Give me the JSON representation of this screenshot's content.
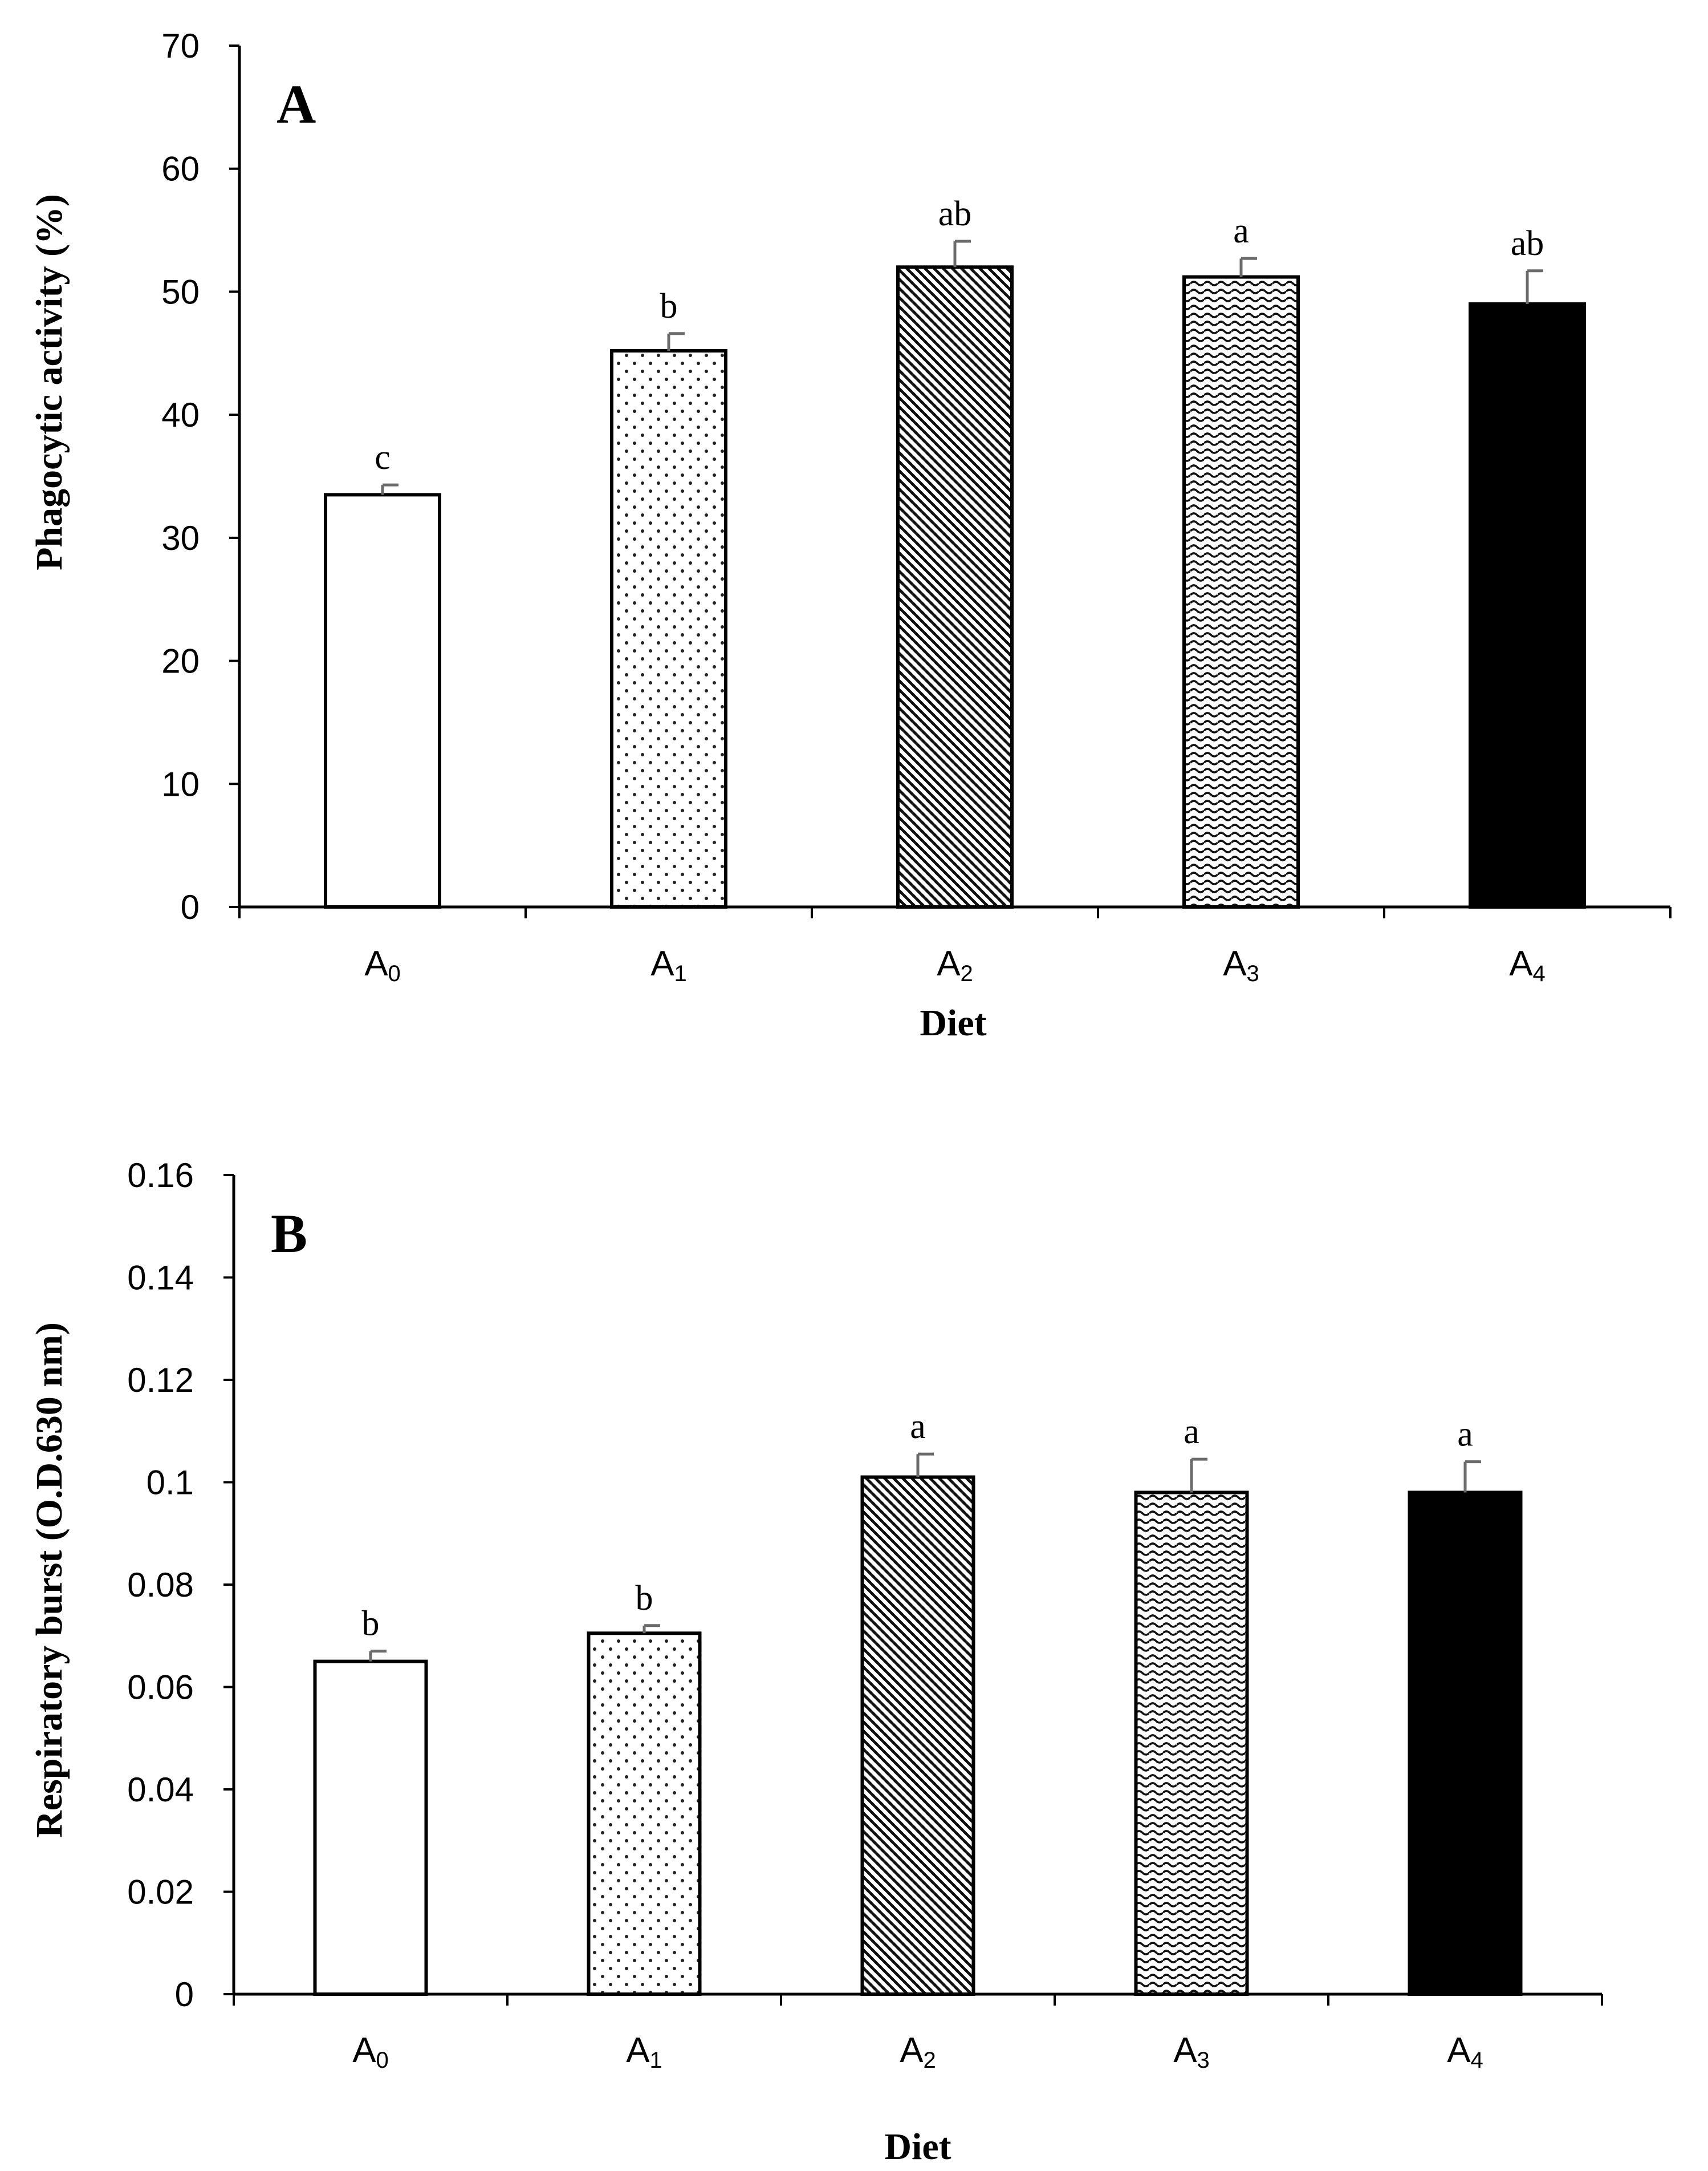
{
  "chart_data": [
    {
      "type": "bar",
      "panel_label": "A",
      "categories": [
        {
          "base": "A",
          "sub": "0"
        },
        {
          "base": "A",
          "sub": "1"
        },
        {
          "base": "A",
          "sub": "2"
        },
        {
          "base": "A",
          "sub": "3"
        },
        {
          "base": "A",
          "sub": "4"
        }
      ],
      "values": [
        33.5,
        45.2,
        52.0,
        51.2,
        49.0
      ],
      "errors": [
        0.8,
        1.4,
        2.1,
        1.5,
        2.7
      ],
      "significance": [
        "c",
        "b",
        "ab",
        "a",
        "ab"
      ],
      "patterns": [
        "none",
        "dots",
        "diagonal",
        "waves",
        "solid"
      ],
      "xlabel": "Diet",
      "ylabel": "Phagocytic activity (%)",
      "ylim": [
        0,
        70
      ],
      "yticks": [
        0,
        10,
        20,
        30,
        40,
        50,
        60,
        70
      ],
      "ytick_labels": [
        "0",
        "10",
        "20",
        "30",
        "40",
        "50",
        "60",
        "70"
      ],
      "grid": false,
      "colors": {
        "bar_stroke": "#000000",
        "error_bar": "#6b6b6b",
        "solid_fill": "#000000"
      }
    },
    {
      "type": "bar",
      "panel_label": "B",
      "categories": [
        {
          "base": "A",
          "sub": "0"
        },
        {
          "base": "A",
          "sub": "1"
        },
        {
          "base": "A",
          "sub": "2"
        },
        {
          "base": "A",
          "sub": "3"
        },
        {
          "base": "A",
          "sub": "4"
        }
      ],
      "values": [
        0.065,
        0.0705,
        0.101,
        0.098,
        0.098
      ],
      "errors": [
        0.002,
        0.0015,
        0.0045,
        0.0065,
        0.006
      ],
      "significance": [
        "b",
        "b",
        "a",
        "a",
        "a"
      ],
      "patterns": [
        "none",
        "dots",
        "diagonal",
        "waves",
        "solid"
      ],
      "xlabel": "Diet",
      "ylabel": "Respiratory burst (O.D.630 nm)",
      "ylim": [
        0,
        0.16
      ],
      "yticks": [
        0,
        0.02,
        0.04,
        0.06,
        0.08,
        0.1,
        0.12,
        0.14,
        0.16
      ],
      "ytick_labels": [
        "0",
        "0.02",
        "0.04",
        "0.06",
        "0.08",
        "0.1",
        "0.12",
        "0.14",
        "0.16"
      ],
      "grid": false,
      "colors": {
        "bar_stroke": "#000000",
        "error_bar": "#6b6b6b",
        "solid_fill": "#000000"
      }
    }
  ]
}
